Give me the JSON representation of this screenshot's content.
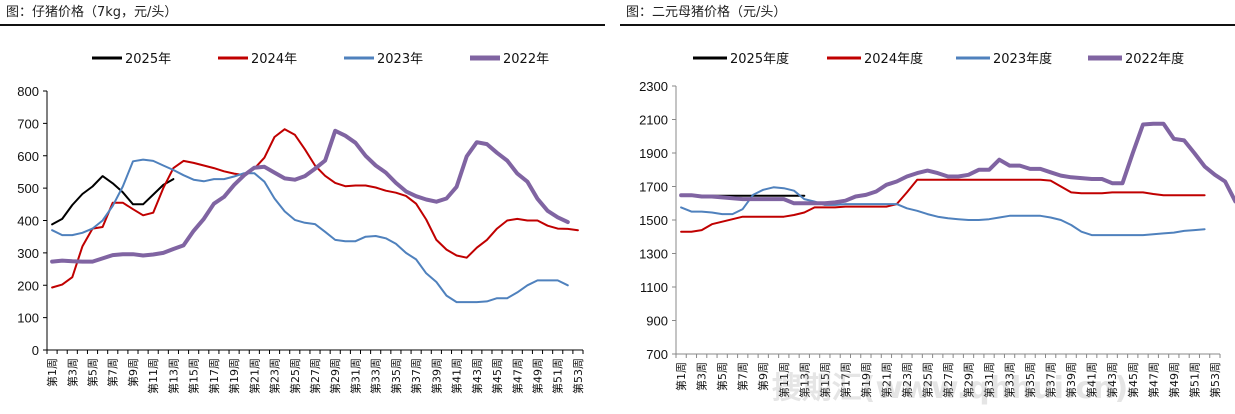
{
  "chart_data": [
    {
      "type": "line",
      "title": "图：仔猪价格（7kg，元/头）",
      "xlabel": "",
      "ylabel": "",
      "ylim": [
        0,
        800
      ],
      "yticks": [
        0,
        100,
        200,
        300,
        400,
        500,
        600,
        700,
        800
      ],
      "grid": false,
      "legend_position": "top",
      "x": [
        "第1周",
        "第2周",
        "第3周",
        "第4周",
        "第5周",
        "第6周",
        "第7周",
        "第8周",
        "第9周",
        "第10周",
        "第11周",
        "第12周",
        "第13周",
        "第14周",
        "第15周",
        "第16周",
        "第17周",
        "第18周",
        "第19周",
        "第20周",
        "第21周",
        "第22周",
        "第23周",
        "第24周",
        "第25周",
        "第26周",
        "第27周",
        "第28周",
        "第29周",
        "第30周",
        "第31周",
        "第32周",
        "第33周",
        "第34周",
        "第35周",
        "第36周",
        "第37周",
        "第38周",
        "第39周",
        "第40周",
        "第41周",
        "第42周",
        "第43周",
        "第44周",
        "第45周",
        "第46周",
        "第47周",
        "第48周",
        "第49周",
        "第50周",
        "第51周",
        "第52周",
        "第53周"
      ],
      "xtick_labels": [
        "第1周",
        "第3周",
        "第5周",
        "第7周",
        "第9周",
        "第11周",
        "第13周",
        "第15周",
        "第17周",
        "第19周",
        "第21周",
        "第23周",
        "第25周",
        "第27周",
        "第29周",
        "第31周",
        "第33周",
        "第35周",
        "第37周",
        "第39周",
        "第41周",
        "第43周",
        "第45周",
        "第47周",
        "第49周",
        "第51周",
        "第53周"
      ],
      "series": [
        {
          "name": "2025年",
          "color": "#000000",
          "values": [
            388,
            405,
            448,
            482,
            505,
            537,
            515,
            487,
            450,
            450,
            480,
            510,
            528
          ]
        },
        {
          "name": "2024年",
          "color": "#C00000",
          "values": [
            193,
            202,
            225,
            320,
            375,
            380,
            455,
            455,
            435,
            416,
            424,
            500,
            562,
            584,
            578,
            570,
            562,
            552,
            545,
            540,
            560,
            594,
            658,
            682,
            665,
            620,
            570,
            538,
            516,
            506,
            508,
            508,
            502,
            492,
            486,
            476,
            452,
            403,
            340,
            310,
            292,
            285,
            316,
            340,
            375,
            400,
            405,
            400,
            400,
            384,
            375,
            374,
            370
          ]
        },
        {
          "name": "2023年",
          "color": "#4F81BD",
          "values": [
            370,
            355,
            355,
            362,
            375,
            400,
            445,
            505,
            583,
            588,
            584,
            570,
            556,
            540,
            526,
            521,
            528,
            528,
            536,
            546,
            546,
            520,
            468,
            428,
            402,
            393,
            389,
            365,
            340,
            336,
            336,
            350,
            352,
            345,
            328,
            300,
            280,
            237,
            210,
            168,
            148,
            148,
            148,
            150,
            160,
            160,
            178,
            200,
            215,
            215,
            215,
            200
          ]
        },
        {
          "name": "2022年",
          "color": "#8064A2",
          "values": [
            273,
            276,
            274,
            273,
            273,
            283,
            293,
            296,
            296,
            292,
            295,
            300,
            312,
            323,
            368,
            405,
            452,
            473,
            510,
            540,
            563,
            566,
            548,
            530,
            526,
            537,
            560,
            585,
            677,
            662,
            640,
            600,
            570,
            548,
            516,
            490,
            475,
            465,
            458,
            468,
            504,
            598,
            642,
            636,
            609,
            585,
            545,
            520,
            467,
            430,
            410,
            395
          ]
        }
      ]
    },
    {
      "type": "line",
      "title": "图：二元母猪价格（元/头）",
      "xlabel": "",
      "ylabel": "",
      "ylim": [
        700,
        2300
      ],
      "yticks": [
        700,
        900,
        1100,
        1300,
        1500,
        1700,
        1900,
        2100,
        2300
      ],
      "grid": false,
      "legend_position": "top",
      "xtick_labels": [
        "第1周",
        "第3周",
        "第5周",
        "第7周",
        "第9周",
        "第11周",
        "第13周",
        "第15周",
        "第17周",
        "第19周",
        "第21周",
        "第23周",
        "第25周",
        "第27周",
        "第29周",
        "第31周",
        "第33周",
        "第35周",
        "第37周",
        "第39周",
        "第41周",
        "第43周",
        "第45周",
        "第47周",
        "第49周",
        "第51周",
        "第53周"
      ],
      "series": [
        {
          "name": "2025年度",
          "color": "#000000",
          "values": [
            1645,
            1645,
            1645,
            1645,
            1645,
            1645,
            1645,
            1645,
            1645,
            1645,
            1645,
            1645,
            1645
          ]
        },
        {
          "name": "2024年度",
          "color": "#C00000",
          "values": [
            1430,
            1430,
            1440,
            1475,
            1490,
            1505,
            1520,
            1520,
            1520,
            1520,
            1520,
            1530,
            1545,
            1575,
            1575,
            1575,
            1580,
            1580,
            1580,
            1580,
            1580,
            1595,
            1665,
            1740,
            1740,
            1740,
            1740,
            1740,
            1740,
            1740,
            1740,
            1740,
            1740,
            1740,
            1740,
            1740,
            1735,
            1700,
            1665,
            1660,
            1660,
            1660,
            1665,
            1665,
            1665,
            1665,
            1655,
            1648,
            1648,
            1648,
            1648,
            1648
          ]
        },
        {
          "name": "2023年度",
          "color": "#4F81BD",
          "values": [
            1575,
            1550,
            1550,
            1545,
            1535,
            1535,
            1565,
            1650,
            1680,
            1695,
            1690,
            1675,
            1625,
            1610,
            1590,
            1590,
            1595,
            1595,
            1595,
            1595,
            1595,
            1595,
            1570,
            1555,
            1535,
            1520,
            1510,
            1505,
            1500,
            1500,
            1505,
            1515,
            1525,
            1525,
            1525,
            1525,
            1515,
            1500,
            1470,
            1430,
            1410,
            1410,
            1410,
            1410,
            1410,
            1410,
            1415,
            1420,
            1425,
            1435,
            1440,
            1445
          ]
        },
        {
          "name": "2022年度",
          "color": "#8064A2",
          "values": [
            1648,
            1648,
            1640,
            1640,
            1635,
            1630,
            1625,
            1625,
            1625,
            1625,
            1625,
            1600,
            1600,
            1600,
            1600,
            1605,
            1615,
            1640,
            1650,
            1670,
            1710,
            1730,
            1760,
            1780,
            1795,
            1780,
            1760,
            1760,
            1770,
            1800,
            1800,
            1860,
            1825,
            1825,
            1805,
            1805,
            1785,
            1765,
            1755,
            1750,
            1745,
            1745,
            1720,
            1720,
            1900,
            2070,
            2075,
            2075,
            1985,
            1975,
            1900,
            1820,
            1770,
            1730,
            1610,
            1595
          ]
        }
      ]
    }
  ],
  "watermark": "搜期汇(www.qhhui.cn)"
}
